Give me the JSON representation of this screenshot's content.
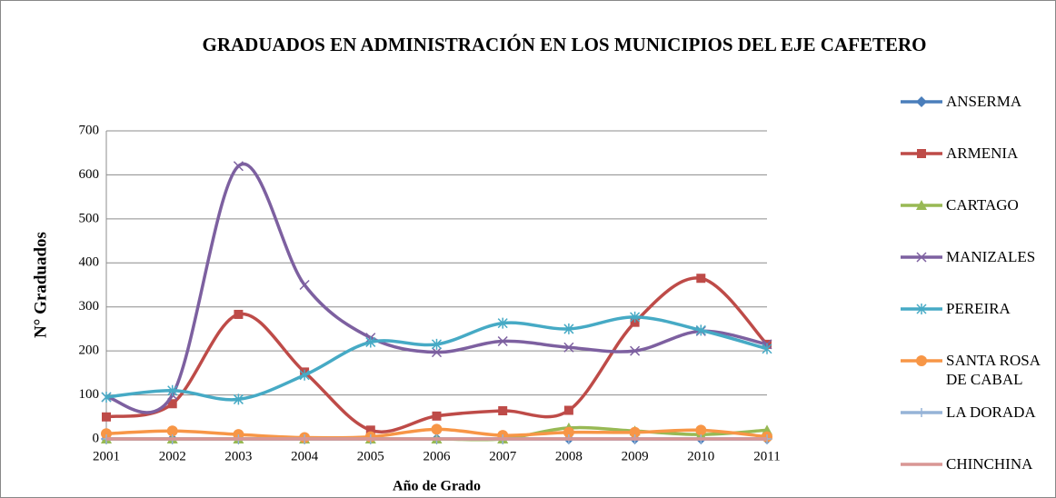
{
  "chart_data": {
    "type": "line",
    "title": "GRADUADOS EN ADMINISTRACIÓN EN LOS MUNICIPIOS DEL EJE CAFETERO",
    "x_label": "Año de Grado",
    "y_label": "N° Graduados",
    "categories": [
      "2001",
      "2002",
      "2003",
      "2004",
      "2005",
      "2006",
      "2007",
      "2008",
      "2009",
      "2010",
      "2011"
    ],
    "ylim": [
      0,
      700
    ],
    "yticks": [
      0,
      100,
      200,
      300,
      400,
      500,
      600,
      700
    ],
    "grid": true,
    "legend": "right",
    "smooth": true,
    "series": [
      {
        "name": "ANSERMA",
        "color": "#4a7ebb",
        "marker": "diamond",
        "values": [
          0,
          0,
          0,
          0,
          0,
          0,
          0,
          0,
          0,
          0,
          0
        ]
      },
      {
        "name": "ARMENIA",
        "color": "#be4b48",
        "marker": "square",
        "values": [
          50,
          80,
          283,
          152,
          20,
          52,
          64,
          65,
          265,
          365,
          215
        ]
      },
      {
        "name": "CARTAGO",
        "color": "#98b954",
        "marker": "triangle",
        "values": [
          0,
          0,
          0,
          0,
          0,
          0,
          0,
          25,
          18,
          10,
          20
        ]
      },
      {
        "name": "MANIZALES",
        "color": "#7d60a0",
        "marker": "x",
        "values": [
          95,
          100,
          620,
          350,
          230,
          197,
          222,
          208,
          200,
          245,
          215
        ]
      },
      {
        "name": "PEREIRA",
        "color": "#46aac5",
        "marker": "asterisk",
        "values": [
          95,
          110,
          90,
          145,
          220,
          215,
          263,
          250,
          277,
          247,
          205
        ]
      },
      {
        "name": "SANTA ROSA DE CABAL",
        "color": "#f79646",
        "marker": "circle",
        "values": [
          12,
          18,
          10,
          3,
          5,
          22,
          8,
          15,
          15,
          20,
          5
        ]
      },
      {
        "name": "LA DORADA",
        "color": "#95b3d7",
        "marker": "plus",
        "values": [
          0,
          0,
          0,
          0,
          0,
          0,
          0,
          0,
          0,
          0,
          0
        ]
      },
      {
        "name": "CHINCHINA",
        "color": "#d99694",
        "marker": "none",
        "values": [
          0,
          0,
          0,
          0,
          0,
          0,
          0,
          0,
          0,
          0,
          0
        ]
      }
    ]
  }
}
